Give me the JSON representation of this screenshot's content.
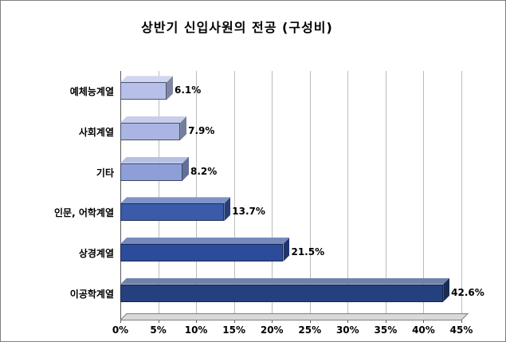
{
  "window": {
    "background": "#ffffff",
    "border_color": "#7f7f7f"
  },
  "chart_data": {
    "type": "bar",
    "orientation": "horizontal",
    "style": "3d-horizontal-bar",
    "title": "상반기 신입사원의 전공 (구성비)",
    "categories": [
      "예체능계열",
      "사회계열",
      "기타",
      "인문, 어학계열",
      "상경계열",
      "이공학계열"
    ],
    "values": [
      6.1,
      7.9,
      8.2,
      13.7,
      21.5,
      42.6
    ],
    "value_labels": [
      "6.1%",
      "7.9%",
      "8.2%",
      "13.7%",
      "21.5%",
      "42.6%"
    ],
    "bar_colors": [
      "#b7c0e8",
      "#aab5e3",
      "#8e9fd8",
      "#3a5aaa",
      "#2d4b9b",
      "#24407e"
    ],
    "xlabel": "",
    "ylabel": "",
    "xlim": [
      0,
      45
    ],
    "xticks": [
      0,
      5,
      10,
      15,
      20,
      25,
      30,
      35,
      40,
      45
    ],
    "xtick_labels": [
      "0%",
      "5%",
      "10%",
      "15%",
      "20%",
      "25%",
      "30%",
      "35%",
      "40%",
      "45%"
    ],
    "grid": true,
    "grid_color": "#bcbcbc",
    "floor_color": "#d9d9d9",
    "legend": "none"
  }
}
